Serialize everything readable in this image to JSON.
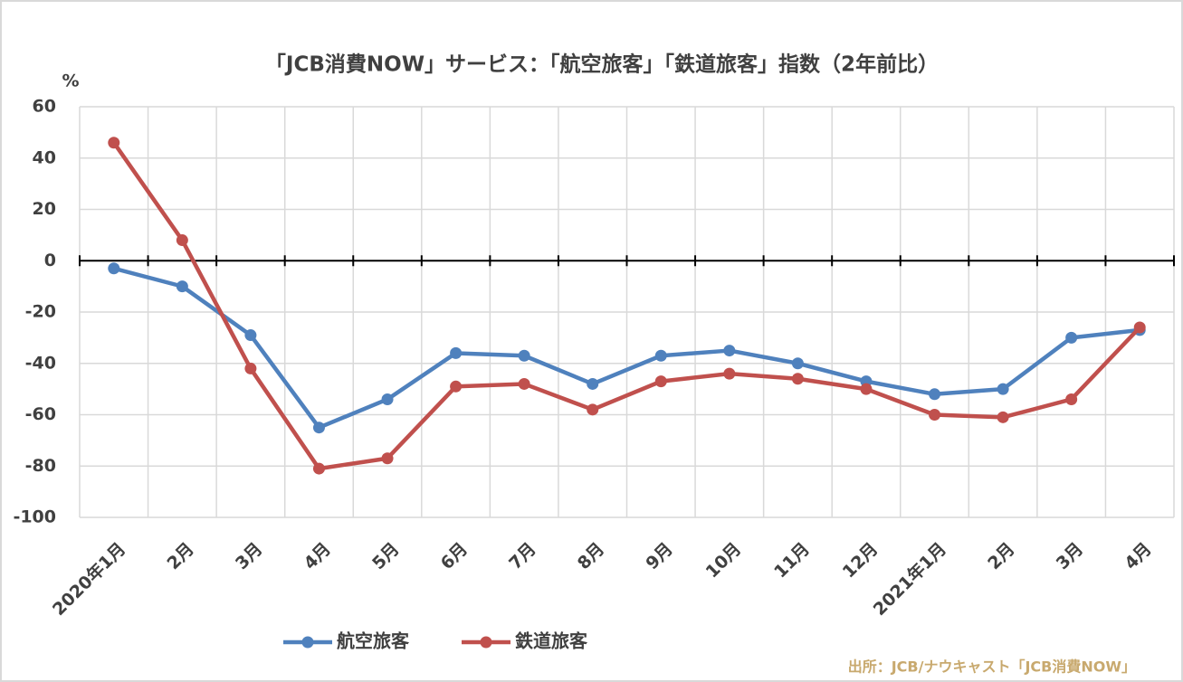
{
  "chart_data": {
    "type": "line",
    "title": "「JCB消費NOW」サービス：「航空旅客」「鉄道旅客」指数（2年前比）",
    "y_label": "%",
    "source": "出所：JCB/ナウキャスト「JCB消費NOW」",
    "categories": [
      "2020年1月",
      "2月",
      "3月",
      "4月",
      "5月",
      "6月",
      "7月",
      "8月",
      "9月",
      "10月",
      "11月",
      "12月",
      "2021年1月",
      "2月",
      "3月",
      "4月"
    ],
    "series": [
      {
        "name": "航空旅客",
        "color": "#4f81bd",
        "values": [
          -3,
          -10,
          -29,
          -65,
          -54,
          -36,
          -37,
          -48,
          -37,
          -35,
          -40,
          -47,
          -52,
          -50,
          -30,
          -27
        ]
      },
      {
        "name": "鉄道旅客",
        "color": "#c0504d",
        "values": [
          46,
          8,
          -42,
          -81,
          -77,
          -49,
          -48,
          -58,
          -47,
          -44,
          -46,
          -50,
          -60,
          -61,
          -54,
          -26
        ]
      }
    ],
    "ylim": [
      -100,
      60
    ],
    "yticks": [
      -100,
      -80,
      -60,
      -40,
      -20,
      0,
      20,
      40,
      60
    ],
    "grid": true
  }
}
